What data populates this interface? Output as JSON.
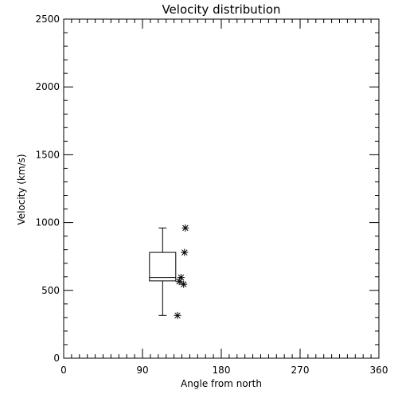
{
  "chart_data": {
    "type": "box",
    "title": "Velocity distribution",
    "xlabel": "Angle from north",
    "ylabel": "Velocity (km/s)",
    "xlim": [
      0,
      360
    ],
    "ylim": [
      0,
      2500
    ],
    "xticks": [
      0,
      90,
      180,
      270,
      360
    ],
    "yticks": [
      0,
      500,
      1000,
      1500,
      2000,
      2500
    ],
    "grid": false,
    "box": {
      "x_center": 113,
      "x_halfwidth": 15,
      "whisker_low": 315,
      "q1": 570,
      "median": 595,
      "q3": 780,
      "whisker_high": 960
    },
    "points": [
      {
        "x": 139,
        "y": 960
      },
      {
        "x": 138,
        "y": 780
      },
      {
        "x": 134,
        "y": 595
      },
      {
        "x": 132,
        "y": 565
      },
      {
        "x": 137,
        "y": 545
      },
      {
        "x": 130,
        "y": 315
      }
    ],
    "color": "#000000"
  }
}
